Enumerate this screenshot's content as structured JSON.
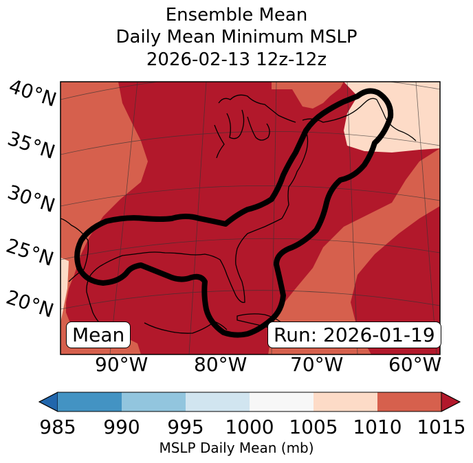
{
  "title": {
    "line1": "Ensemble Mean",
    "line2": "Daily Mean Minimum MSLP",
    "line3": "2026-02-13 12z-12z"
  },
  "map": {
    "lat_labels": [
      "40°N",
      "35°N",
      "30°N",
      "25°N",
      "20°N"
    ],
    "lon_labels": [
      "90°W",
      "80°W",
      "70°W",
      "60°W"
    ],
    "mean_box": "Mean",
    "run_box": "Run: 2026-01-19",
    "region_levels_mb": {
      "outer_band": "1010-1015",
      "central_broad_region": ">1015",
      "northeast_high": "1005-1010",
      "southwest_corner": "1005-1010"
    }
  },
  "colorbar": {
    "ticks": [
      "985",
      "990",
      "995",
      "1000",
      "1005",
      "1010",
      "1015"
    ],
    "label": "MSLP Daily Mean (mb)",
    "colors": [
      "#2166ac",
      "#4393c3",
      "#92c5de",
      "#d1e5f0",
      "#f7f7f7",
      "#fddbc7",
      "#d6604d",
      "#b2182b"
    ],
    "contour_color": "#000000"
  }
}
